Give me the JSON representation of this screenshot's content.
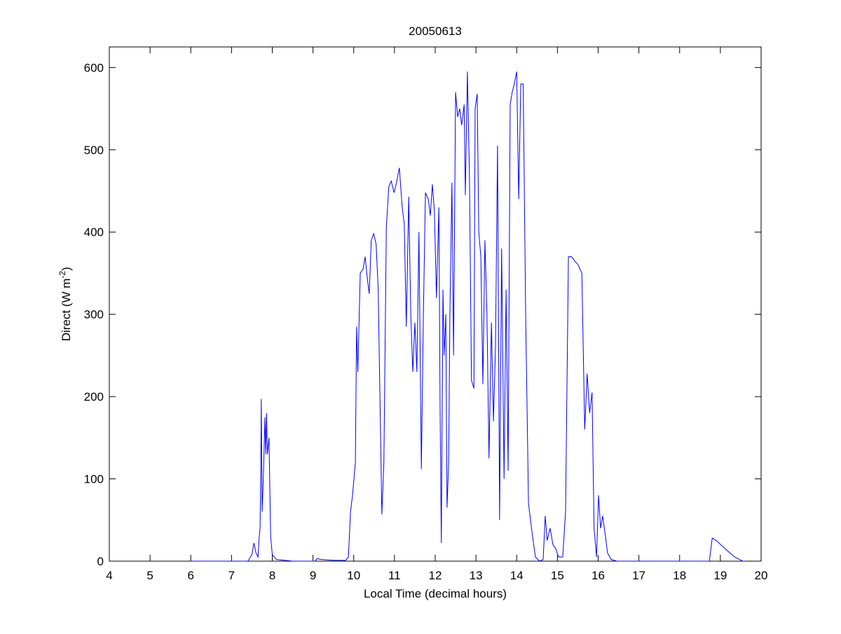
{
  "chart_data": {
    "type": "line",
    "title": "20050613",
    "xlabel": "Local Time (decimal hours)",
    "ylabel": {
      "text": "Direct (W m",
      "sup": "-2",
      "end": ")"
    },
    "xlim": [
      4,
      20
    ],
    "ylim": [
      0,
      625
    ],
    "xticks": [
      4,
      5,
      6,
      7,
      8,
      9,
      10,
      11,
      12,
      13,
      14,
      15,
      16,
      17,
      18,
      19,
      20
    ],
    "yticks": [
      0,
      100,
      200,
      300,
      400,
      500,
      600
    ],
    "grid": false,
    "series": [
      {
        "color": "#0000ff",
        "x": [
          6.0,
          7.4,
          7.5,
          7.55,
          7.6,
          7.65,
          7.68,
          7.7,
          7.72,
          7.73,
          7.75,
          7.78,
          7.82,
          7.84,
          7.86,
          7.88,
          7.92,
          7.96,
          8.0,
          8.1,
          8.5,
          9.05,
          9.1,
          9.2,
          9.5,
          9.8,
          9.87,
          9.92,
          9.97,
          10.04,
          10.07,
          10.1,
          10.16,
          10.23,
          10.28,
          10.33,
          10.38,
          10.43,
          10.49,
          10.55,
          10.6,
          10.66,
          10.69,
          10.74,
          10.8,
          10.86,
          10.92,
          10.99,
          11.05,
          11.12,
          11.19,
          11.24,
          11.29,
          11.35,
          11.4,
          11.45,
          11.5,
          11.55,
          11.6,
          11.66,
          11.71,
          11.76,
          11.83,
          11.88,
          11.93,
          11.98,
          12.03,
          12.09,
          12.12,
          12.15,
          12.19,
          12.22,
          12.26,
          12.29,
          12.33,
          12.36,
          12.41,
          12.45,
          12.5,
          12.55,
          12.6,
          12.65,
          12.71,
          12.74,
          12.79,
          12.84,
          12.89,
          12.95,
          12.98,
          13.03,
          13.07,
          13.12,
          13.17,
          13.22,
          13.27,
          13.32,
          13.38,
          13.43,
          13.48,
          13.53,
          13.58,
          13.63,
          13.69,
          13.74,
          13.79,
          13.84,
          13.89,
          13.94,
          14.0,
          14.05,
          14.1,
          14.16,
          14.22,
          14.29,
          14.34,
          14.39,
          14.46,
          14.56,
          14.65,
          14.7,
          14.75,
          14.82,
          14.89,
          14.96,
          15.03,
          15.13,
          15.2,
          15.27,
          15.35,
          15.42,
          15.51,
          15.6,
          15.67,
          15.73,
          15.79,
          15.85,
          15.9,
          15.96,
          16.01,
          16.06,
          16.11,
          16.18,
          16.23,
          16.32,
          16.46,
          18.73,
          18.8,
          18.9,
          19.12,
          19.35,
          19.55,
          19.62
        ],
        "values": [
          0,
          0,
          8,
          22,
          10,
          5,
          30,
          40,
          120,
          197,
          60,
          100,
          175,
          130,
          180,
          130,
          150,
          30,
          8,
          2,
          0,
          0,
          3,
          2,
          1,
          1,
          5,
          60,
          80,
          120,
          285,
          230,
          350,
          355,
          370,
          345,
          325,
          390,
          398,
          385,
          330,
          150,
          57,
          120,
          405,
          455,
          462,
          448,
          460,
          478,
          430,
          410,
          285,
          443,
          300,
          230,
          290,
          230,
          400,
          112,
          300,
          448,
          440,
          420,
          458,
          425,
          320,
          430,
          185,
          22,
          330,
          250,
          300,
          65,
          120,
          300,
          460,
          250,
          570,
          540,
          550,
          530,
          555,
          445,
          595,
          470,
          220,
          210,
          550,
          568,
          400,
          370,
          215,
          390,
          300,
          125,
          290,
          170,
          260,
          505,
          50,
          380,
          100,
          330,
          110,
          555,
          570,
          580,
          595,
          440,
          580,
          580,
          300,
          70,
          50,
          30,
          5,
          0,
          2,
          55,
          25,
          40,
          20,
          15,
          5,
          5,
          60,
          370,
          370,
          365,
          360,
          350,
          160,
          228,
          180,
          205,
          40,
          5,
          80,
          40,
          55,
          30,
          10,
          2,
          0,
          0,
          28,
          25,
          15,
          5,
          0,
          0
        ]
      }
    ]
  }
}
